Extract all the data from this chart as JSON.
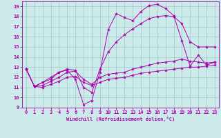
{
  "xlabel": "Windchill (Refroidissement éolien,°C)",
  "bg_color": "#cdeaea",
  "grid_color": "#9dc8c8",
  "line_color": "#aa00aa",
  "xlim": [
    -0.5,
    23.5
  ],
  "ylim": [
    9,
    19.5
  ],
  "yticks": [
    9,
    10,
    11,
    12,
    13,
    14,
    15,
    16,
    17,
    18,
    19
  ],
  "xticks": [
    0,
    1,
    2,
    3,
    4,
    5,
    6,
    7,
    8,
    9,
    10,
    11,
    12,
    13,
    14,
    15,
    16,
    17,
    18,
    19,
    20,
    21,
    22,
    23
  ],
  "series": [
    {
      "x": [
        0,
        1,
        2,
        3,
        4,
        5,
        6,
        7,
        8,
        9,
        10,
        11,
        12,
        13,
        14,
        15,
        16,
        17,
        18,
        19,
        20,
        21,
        22,
        23
      ],
      "y": [
        12.8,
        11.1,
        11.0,
        11.3,
        11.6,
        12.0,
        12.1,
        11.5,
        11.2,
        11.5,
        11.8,
        11.9,
        12.0,
        12.2,
        12.4,
        12.5,
        12.6,
        12.7,
        12.8,
        12.9,
        13.0,
        13.0,
        13.1,
        13.2
      ]
    },
    {
      "x": [
        0,
        1,
        2,
        3,
        4,
        5,
        6,
        7,
        8,
        9,
        10,
        11,
        12,
        13,
        14,
        15,
        16,
        17,
        18,
        19,
        20,
        21,
        22,
        23
      ],
      "y": [
        12.8,
        11.1,
        11.2,
        11.6,
        12.0,
        12.5,
        12.6,
        11.8,
        11.3,
        12.0,
        12.3,
        12.4,
        12.5,
        12.8,
        13.0,
        13.2,
        13.4,
        13.5,
        13.6,
        13.8,
        13.6,
        13.5,
        13.4,
        13.5
      ]
    },
    {
      "x": [
        0,
        1,
        2,
        3,
        4,
        5,
        6,
        7,
        8,
        9,
        10,
        11,
        12,
        13,
        14,
        15,
        16,
        17,
        18,
        19,
        20,
        21,
        22,
        23
      ],
      "y": [
        12.8,
        11.1,
        11.5,
        11.8,
        12.5,
        12.7,
        11.8,
        9.3,
        9.7,
        12.5,
        16.7,
        18.3,
        17.9,
        17.6,
        18.5,
        19.1,
        19.2,
        18.8,
        18.1,
        15.6,
        13.1,
        14.2,
        13.2,
        13.5
      ]
    },
    {
      "x": [
        0,
        1,
        2,
        3,
        4,
        5,
        6,
        7,
        8,
        9,
        10,
        11,
        12,
        13,
        14,
        15,
        16,
        17,
        18,
        19,
        20,
        21,
        22,
        23
      ],
      "y": [
        12.8,
        11.1,
        11.5,
        12.0,
        12.5,
        12.8,
        12.7,
        11.0,
        10.5,
        12.8,
        14.5,
        15.5,
        16.2,
        16.8,
        17.3,
        17.8,
        18.0,
        18.1,
        18.0,
        17.3,
        15.5,
        15.0,
        15.0,
        15.0
      ]
    }
  ]
}
